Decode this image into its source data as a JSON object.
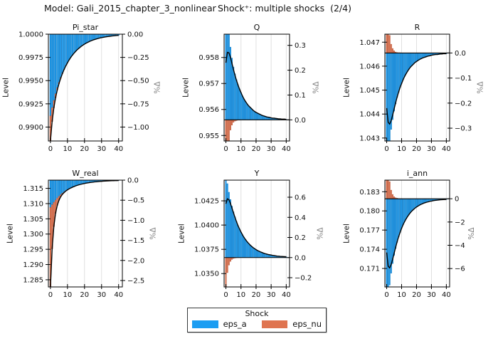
{
  "header": {
    "model_title": "Model: Gali_2015_chapter_3_nonlinear",
    "shock_title": "Shock⁺: multiple shocks  (2/4)"
  },
  "legend": {
    "title": "Shock",
    "entries": [
      {
        "label": "eps_a",
        "color": "#1b9df2"
      },
      {
        "label": "eps_nu",
        "color": "#df7450"
      }
    ]
  },
  "colors": {
    "eps_a_fill": "#1b9df2",
    "eps_a_edge": "#0e6fb3",
    "eps_nu_fill": "#df7450",
    "eps_nu_edge": "#b05033",
    "total_line": "#000000",
    "grid": "#dcdcdc",
    "frame": "#000000",
    "right_label": "#7f7f7f"
  },
  "chart_data": {
    "type": "bar",
    "subtype": "stacked shock decomposition bars with overlaid total IRF line, dual y-axes (Level left, %Δ right)",
    "x_range": [
      0,
      40
    ],
    "x_ticks": [
      0,
      10,
      20,
      30,
      40
    ],
    "xlim": [
      -1.2,
      42.2
    ],
    "ylabel_left": "Level",
    "ylabel_right": "%Δ",
    "series_names": [
      "eps_a",
      "eps_nu"
    ],
    "plots": [
      {
        "title": "Pi_star",
        "ss": 1.0,
        "ylim_pct": [
          -1.15,
          0.0
        ],
        "left_ticks": [
          [
            "1.0000",
            1.0
          ],
          [
            "0.9975",
            0.9975
          ],
          [
            "0.9950",
            0.995
          ],
          [
            "0.9925",
            0.9925
          ],
          [
            "0.9900",
            0.99
          ]
        ],
        "right_ticks": [
          [
            "0.00",
            0.0
          ],
          [
            "−0.25",
            -0.25
          ],
          [
            "−0.50",
            -0.5
          ],
          [
            "−0.75",
            -0.75
          ],
          [
            "−1.00",
            -1.0
          ]
        ],
        "eps_a": [
          -0.88,
          -0.792,
          -0.713,
          -0.642,
          -0.577,
          -0.52,
          -0.468,
          -0.421,
          -0.379,
          -0.341,
          -0.307,
          -0.276,
          -0.248,
          -0.224,
          -0.201,
          -0.181,
          -0.163,
          -0.147,
          -0.132,
          -0.119,
          -0.107,
          -0.096,
          -0.087,
          -0.078,
          -0.07,
          -0.063,
          -0.057,
          -0.051,
          -0.046,
          -0.041,
          -0.037,
          -0.034,
          -0.03,
          -0.027,
          -0.024,
          -0.022,
          -0.02,
          -0.018,
          -0.016,
          -0.014,
          -0.013
        ],
        "eps_nu": [
          -0.27,
          -0.149,
          -0.082,
          -0.045,
          -0.025,
          -0.014,
          -0.008,
          -0.004,
          -0.002,
          -0.001,
          -0.001,
          0,
          0,
          0,
          0,
          0,
          0,
          0,
          0,
          0,
          0,
          0,
          0,
          0,
          0,
          0,
          0,
          0,
          0,
          0,
          0,
          0,
          0,
          0,
          0,
          0,
          0,
          0,
          0,
          0,
          0
        ]
      },
      {
        "title": "Q",
        "ss": 0.9556,
        "ylim_pct": [
          -0.085,
          0.345
        ],
        "left_ticks": [
          [
            "0.958",
            0.958
          ],
          [
            "0.957",
            0.957
          ],
          [
            "0.956",
            0.956
          ],
          [
            "0.955",
            0.955
          ]
        ],
        "right_ticks": [
          [
            "0.3",
            0.3
          ],
          [
            "0.2",
            0.2
          ],
          [
            "0.1",
            0.1
          ],
          [
            "0.0",
            0.0
          ]
        ],
        "eps_a": [
          0.56,
          0.437,
          0.353,
          0.293,
          0.249,
          0.213,
          0.185,
          0.162,
          0.142,
          0.125,
          0.11,
          0.096,
          0.084,
          0.074,
          0.065,
          0.057,
          0.051,
          0.045,
          0.039,
          0.034,
          0.03,
          0.027,
          0.024,
          0.021,
          0.018,
          0.016,
          0.014,
          0.012,
          0.011,
          0.01,
          0.008,
          0.007,
          0.007,
          0.006,
          0.005,
          0.004,
          0.004,
          0.003,
          0.003,
          0.003,
          0.002
        ],
        "eps_nu": [
          -0.33,
          -0.165,
          -0.083,
          -0.041,
          -0.021,
          -0.01,
          -0.005,
          -0.003,
          -0.001,
          -0.001,
          0,
          0,
          0,
          0,
          0,
          0,
          0,
          0,
          0,
          0,
          0,
          0,
          0,
          0,
          0,
          0,
          0,
          0,
          0,
          0,
          0,
          0,
          0,
          0,
          0,
          0,
          0,
          0,
          0,
          0,
          0
        ]
      },
      {
        "title": "R",
        "ss": 1.04655,
        "ylim_pct": [
          -0.351,
          0.075
        ],
        "left_ticks": [
          [
            "1.047",
            1.047
          ],
          [
            "1.046",
            1.046
          ],
          [
            "1.045",
            1.045
          ],
          [
            "1.044",
            1.044
          ],
          [
            "1.043",
            1.043
          ]
        ],
        "right_ticks": [
          [
            "0.0",
            0.0
          ],
          [
            "−0.1",
            -0.1
          ],
          [
            "−0.2",
            -0.2
          ],
          [
            "−0.3",
            -0.3
          ]
        ],
        "eps_a": [
          -0.5,
          -0.416,
          -0.354,
          -0.305,
          -0.266,
          -0.232,
          -0.203,
          -0.178,
          -0.157,
          -0.138,
          -0.122,
          -0.107,
          -0.094,
          -0.083,
          -0.073,
          -0.064,
          -0.056,
          -0.05,
          -0.044,
          -0.038,
          -0.034,
          -0.03,
          -0.026,
          -0.023,
          -0.02,
          -0.018,
          -0.016,
          -0.014,
          -0.012,
          -0.011,
          -0.009,
          -0.008,
          -0.007,
          -0.006,
          -0.006,
          -0.005,
          -0.004,
          -0.004,
          -0.003,
          -0.003,
          -0.003
        ],
        "eps_nu": [
          0.28,
          0.14,
          0.07,
          0.035,
          0.018,
          0.009,
          0.004,
          0.002,
          0.001,
          0.001,
          0,
          0,
          0,
          0,
          0,
          0,
          0,
          0,
          0,
          0,
          0,
          0,
          0,
          0,
          0,
          0,
          0,
          0,
          0,
          0,
          0,
          0,
          0,
          0,
          0,
          0,
          0,
          0,
          0,
          0,
          0
        ]
      },
      {
        "title": "W_real",
        "ss": 1.3177,
        "ylim_pct": [
          -2.66,
          0.0
        ],
        "left_ticks": [
          [
            "1.315",
            1.315
          ],
          [
            "1.310",
            1.31
          ],
          [
            "1.305",
            1.305
          ],
          [
            "1.300",
            1.3
          ],
          [
            "1.295",
            1.295
          ],
          [
            "1.290",
            1.29
          ],
          [
            "1.285",
            1.285
          ]
        ],
        "right_ticks": [
          [
            "0.0",
            0.0
          ],
          [
            "−0.5",
            -0.5
          ],
          [
            "−1.0",
            -1.0
          ],
          [
            "−1.5",
            -1.5
          ],
          [
            "−2.0",
            -2.0
          ],
          [
            "−2.5",
            -2.5
          ]
        ],
        "eps_a": [
          -0.68,
          -0.612,
          -0.551,
          -0.496,
          -0.446,
          -0.402,
          -0.361,
          -0.325,
          -0.293,
          -0.263,
          -0.237,
          -0.213,
          -0.192,
          -0.173,
          -0.156,
          -0.14,
          -0.126,
          -0.113,
          -0.102,
          -0.092,
          -0.083,
          -0.074,
          -0.067,
          -0.06,
          -0.054,
          -0.049,
          -0.044,
          -0.04,
          -0.036,
          -0.032,
          -0.029,
          -0.026,
          -0.023,
          -0.021,
          -0.019,
          -0.017,
          -0.015,
          -0.014,
          -0.012,
          -0.011,
          -0.01
        ],
        "eps_nu": [
          -2.0,
          -1.1,
          -0.605,
          -0.333,
          -0.183,
          -0.101,
          -0.055,
          -0.03,
          -0.017,
          -0.009,
          -0.005,
          -0.003,
          -0.002,
          -0.001,
          0,
          0,
          0,
          0,
          0,
          0,
          0,
          0,
          0,
          0,
          0,
          0,
          0,
          0,
          0,
          0,
          0,
          0,
          0,
          0,
          0,
          0,
          0,
          0,
          0,
          0,
          0
        ]
      },
      {
        "title": "Y",
        "ss": 1.03665,
        "ylim_pct": [
          -0.292,
          0.77
        ],
        "left_ticks": [
          [
            "1.0425",
            1.0425
          ],
          [
            "1.0400",
            1.04
          ],
          [
            "1.0375",
            1.0375
          ],
          [
            "1.0350",
            1.035
          ]
        ],
        "right_ticks": [
          [
            "0.6",
            0.6
          ],
          [
            "0.4",
            0.4
          ],
          [
            "0.2",
            0.2
          ],
          [
            "0.0",
            0.0
          ],
          [
            "−0.2",
            -0.2
          ]
        ],
        "eps_a": [
          0.835,
          0.735,
          0.65,
          0.577,
          0.512,
          0.455,
          0.405,
          0.36,
          0.32,
          0.286,
          0.254,
          0.226,
          0.201,
          0.179,
          0.159,
          0.142,
          0.126,
          0.112,
          0.1,
          0.089,
          0.079,
          0.07,
          0.063,
          0.056,
          0.05,
          0.044,
          0.039,
          0.035,
          0.031,
          0.028,
          0.025,
          0.022,
          0.02,
          0.017,
          0.015,
          0.014,
          0.012,
          0.011,
          0.01,
          0.009,
          0.008
        ],
        "eps_nu": [
          -0.3,
          -0.15,
          -0.075,
          -0.038,
          -0.019,
          -0.009,
          -0.005,
          -0.002,
          -0.001,
          -0.001,
          0,
          0,
          0,
          0,
          0,
          0,
          0,
          0,
          0,
          0,
          0,
          0,
          0,
          0,
          0,
          0,
          0,
          0,
          0,
          0,
          0,
          0,
          0,
          0,
          0,
          0,
          0,
          0,
          0,
          0,
          0
        ]
      },
      {
        "title": "i_ann",
        "ss": 0.1819,
        "ylim_pct": [
          -7.58,
          1.6
        ],
        "left_ticks": [
          [
            "0.183",
            0.183
          ],
          [
            "0.180",
            0.18
          ],
          [
            "0.177",
            0.177
          ],
          [
            "0.174",
            0.174
          ],
          [
            "0.171",
            0.171
          ]
        ],
        "right_ticks": [
          [
            "0",
            0
          ],
          [
            "−2",
            -2
          ],
          [
            "−4",
            -4
          ],
          [
            "−6",
            -6
          ]
        ],
        "eps_a": [
          -10.5,
          -8.73,
          -7.42,
          -6.4,
          -5.57,
          -4.87,
          -4.27,
          -3.75,
          -3.29,
          -2.9,
          -2.55,
          -2.24,
          -1.97,
          -1.74,
          -1.53,
          -1.35,
          -1.18,
          -1.04,
          -0.92,
          -0.81,
          -0.71,
          -0.63,
          -0.55,
          -0.48,
          -0.43,
          -0.37,
          -0.33,
          -0.29,
          -0.26,
          -0.22,
          -0.2,
          -0.17,
          -0.15,
          -0.13,
          -0.12,
          -0.1,
          -0.09,
          -0.08,
          -0.07,
          -0.06,
          -0.06
        ],
        "eps_nu": [
          5.88,
          2.94,
          1.47,
          0.74,
          0.37,
          0.18,
          0.09,
          0.05,
          0.02,
          0.01,
          0.01,
          0,
          0,
          0,
          0,
          0,
          0,
          0,
          0,
          0,
          0,
          0,
          0,
          0,
          0,
          0,
          0,
          0,
          0,
          0,
          0,
          0,
          0,
          0,
          0,
          0,
          0,
          0,
          0,
          0,
          0
        ]
      }
    ]
  }
}
